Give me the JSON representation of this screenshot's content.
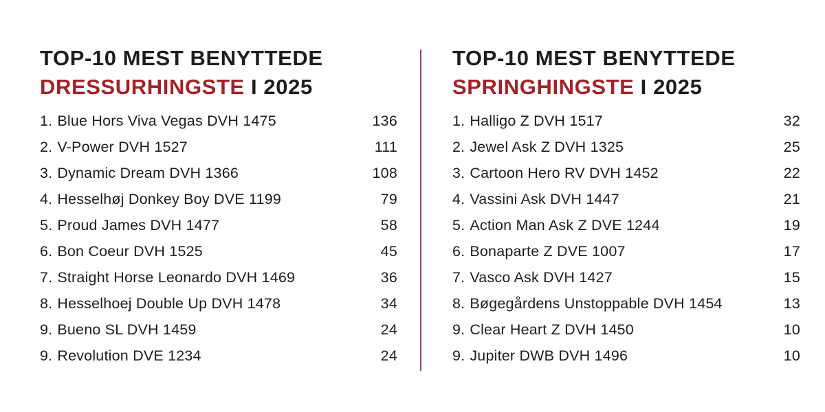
{
  "colors": {
    "accent_red": "#A32228",
    "text_dark": "#1d1d1d",
    "divider_line": "#8c4a50",
    "background": "#ffffff"
  },
  "lists": [
    {
      "title_line1": "TOP-10 MEST BENYTTEDE",
      "title_accent": "DRESSURHINGSTE",
      "title_suffix": " I 2025",
      "items": [
        {
          "rank": "1.",
          "name": "Blue Hors Viva Vegas DVH 1475",
          "count": "136"
        },
        {
          "rank": "2.",
          "name": "V-Power DVH 1527",
          "count": "111"
        },
        {
          "rank": "3.",
          "name": "Dynamic Dream DVH 1366",
          "count": "108"
        },
        {
          "rank": "4.",
          "name": "Hesselhøj Donkey Boy DVE 1199",
          "count": "79"
        },
        {
          "rank": "5.",
          "name": "Proud James DVH 1477",
          "count": "58"
        },
        {
          "rank": "6.",
          "name": "Bon Coeur DVH 1525",
          "count": "45"
        },
        {
          "rank": "7.",
          "name": "Straight Horse Leonardo DVH 1469",
          "count": "36"
        },
        {
          "rank": "8.",
          "name": "Hesselhoej Double Up DVH 1478",
          "count": "34"
        },
        {
          "rank": "9.",
          "name": "Bueno SL DVH 1459",
          "count": "24"
        },
        {
          "rank": "9.",
          "name": "Revolution DVE 1234",
          "count": "24"
        }
      ]
    },
    {
      "title_line1": "TOP-10 MEST BENYTTEDE",
      "title_accent": "SPRINGHINGSTE",
      "title_suffix": " I 2025",
      "items": [
        {
          "rank": "1.",
          "name": "Halligo Z DVH 1517",
          "count": "32"
        },
        {
          "rank": "2.",
          "name": "Jewel Ask Z DVH 1325",
          "count": "25"
        },
        {
          "rank": "3.",
          "name": "Cartoon Hero RV DVH 1452",
          "count": "22"
        },
        {
          "rank": "4.",
          "name": "Vassini Ask DVH 1447",
          "count": "21"
        },
        {
          "rank": "5.",
          "name": "Action Man Ask Z DVE 1244",
          "count": "19"
        },
        {
          "rank": "6.",
          "name": "Bonaparte Z DVE 1007",
          "count": "17"
        },
        {
          "rank": "7.",
          "name": "Vasco Ask DVH 1427",
          "count": "15"
        },
        {
          "rank": "8.",
          "name": "Bøgegårdens Unstoppable DVH 1454",
          "count": "13"
        },
        {
          "rank": "9.",
          "name": "Clear Heart Z DVH 1450",
          "count": "10"
        },
        {
          "rank": "9.",
          "name": "Jupiter DWB DVH 1496",
          "count": "10"
        }
      ]
    }
  ]
}
